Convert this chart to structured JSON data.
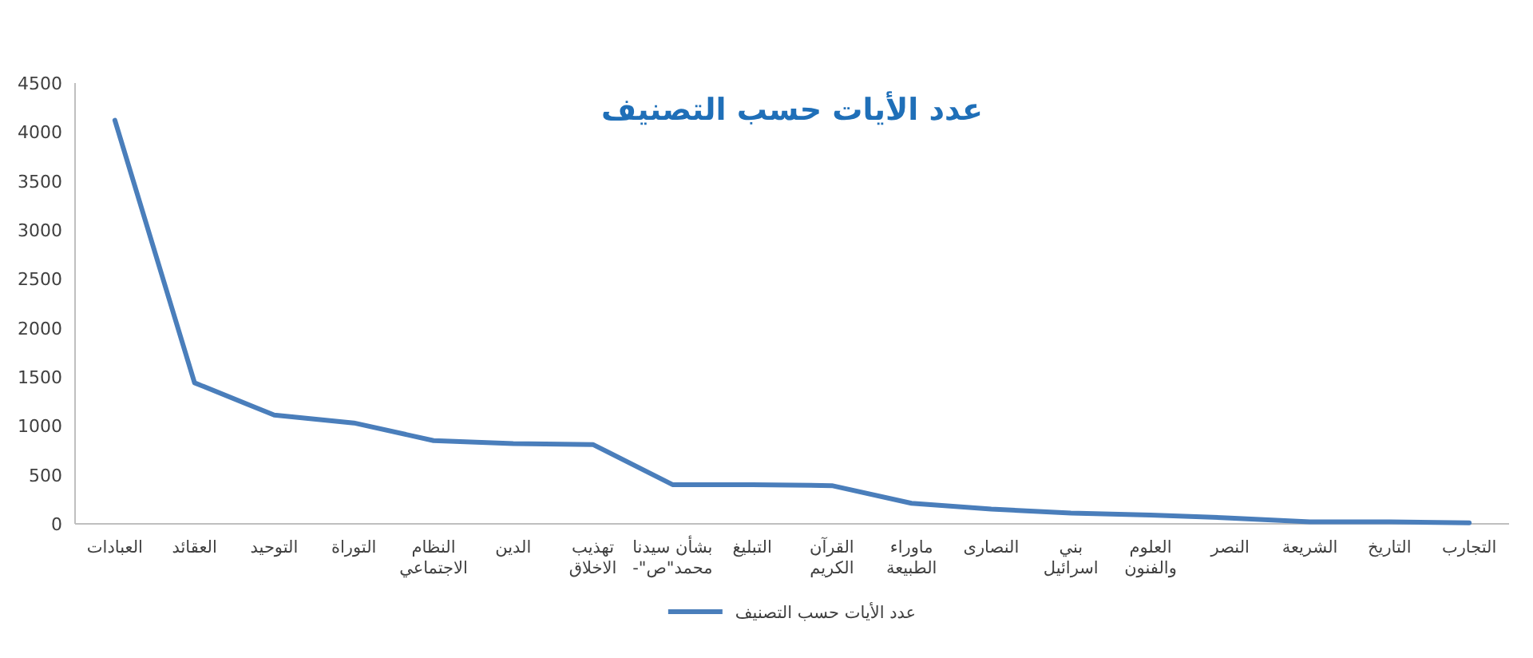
{
  "chart_data": {
    "type": "line",
    "title": "عدد الأيات حسب التصنيف",
    "categories": [
      "العبادات",
      "العقائد",
      "التوحيد",
      "التوراة",
      "النظام الاجتماعي",
      "الدين",
      "تهذيب الاخلاق",
      "بشأن سيدنا محمد\"ص\"-",
      "التبليغ",
      "القرآن الكريم",
      "ماوراء الطبيعة",
      "النصارى",
      "بني اسرائيل",
      "العلوم والفنون",
      "النصر",
      "الشريعة",
      "التاريخ",
      "التجارب"
    ],
    "series": [
      {
        "name": "عدد الأيات حسب التصنيف",
        "color": "#4a7ebb",
        "values": [
          4120,
          1440,
          1110,
          1030,
          850,
          820,
          810,
          400,
          400,
          390,
          210,
          150,
          110,
          90,
          60,
          20,
          20,
          10
        ]
      }
    ],
    "ylim": [
      0,
      4500
    ],
    "yticks": [
      0,
      500,
      1000,
      1500,
      2000,
      2500,
      3000,
      3500,
      4000,
      4500
    ],
    "legend": "bottom",
    "marker": "none",
    "line_style": "solid"
  }
}
